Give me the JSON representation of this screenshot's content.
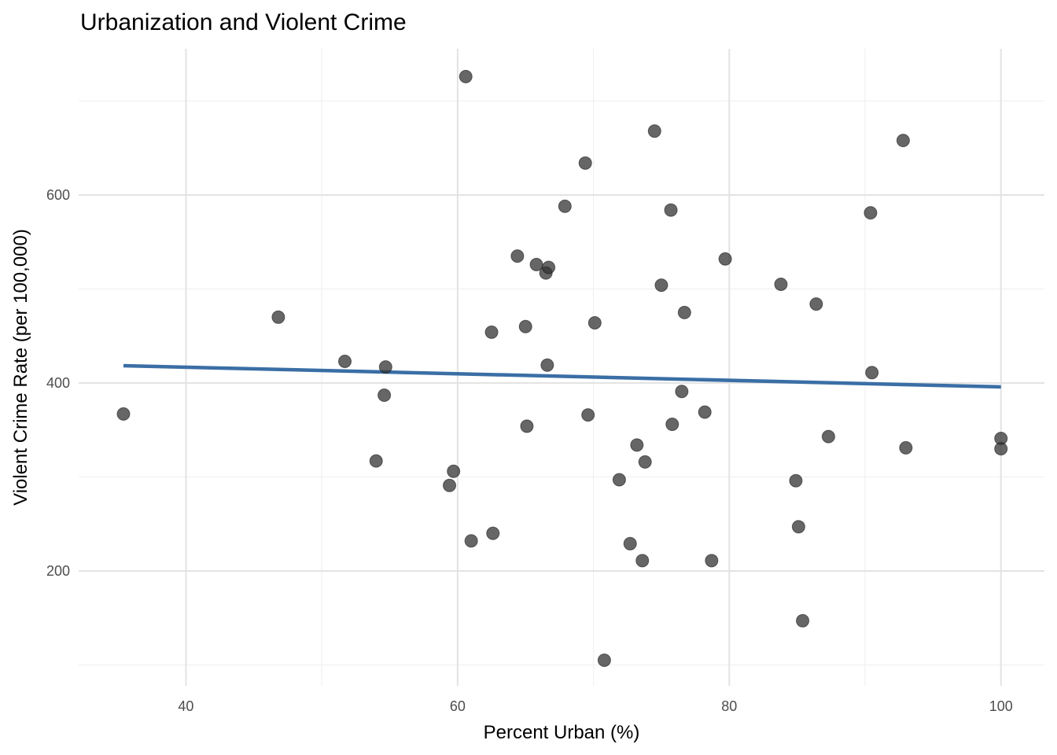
{
  "chart_data": {
    "type": "scatter",
    "title": "Urbanization and Violent Crime",
    "xlabel": "Percent Urban (%)",
    "ylabel": "Violent Crime Rate (per 100,000)",
    "xlim": [
      32.1,
      103.2
    ],
    "ylim": [
      77.8,
      755.6
    ],
    "x_ticks": [
      40,
      60,
      80,
      100
    ],
    "x_tick_labels": [
      "40",
      "60",
      "80",
      "100"
    ],
    "x_minor_ticks": [
      50,
      70,
      90
    ],
    "y_ticks": [
      200,
      400,
      600
    ],
    "y_tick_labels": [
      "200",
      "400",
      "600"
    ],
    "y_minor_ticks": [
      100,
      300,
      500,
      700
    ],
    "grid": true,
    "point_color": "#333333",
    "point_opacity": 0.75,
    "line_color": "#3a6ea5",
    "points": [
      [
        35.4,
        367
      ],
      [
        46.8,
        470
      ],
      [
        51.7,
        423
      ],
      [
        54.7,
        417
      ],
      [
        54.6,
        387
      ],
      [
        54.0,
        317
      ],
      [
        60.6,
        726
      ],
      [
        59.7,
        306
      ],
      [
        59.4,
        291
      ],
      [
        61.0,
        232
      ],
      [
        62.6,
        240
      ],
      [
        62.5,
        454
      ],
      [
        64.4,
        535
      ],
      [
        65.0,
        460
      ],
      [
        65.1,
        354
      ],
      [
        65.8,
        526
      ],
      [
        66.5,
        517
      ],
      [
        66.7,
        523
      ],
      [
        66.6,
        419
      ],
      [
        67.9,
        588
      ],
      [
        69.4,
        634
      ],
      [
        69.6,
        366
      ],
      [
        70.1,
        464
      ],
      [
        70.8,
        105
      ],
      [
        71.9,
        297
      ],
      [
        72.7,
        229
      ],
      [
        73.2,
        334
      ],
      [
        73.6,
        211
      ],
      [
        73.8,
        316
      ],
      [
        74.5,
        668
      ],
      [
        75.0,
        504
      ],
      [
        75.7,
        584
      ],
      [
        75.8,
        356
      ],
      [
        76.5,
        391
      ],
      [
        76.7,
        475
      ],
      [
        78.2,
        369
      ],
      [
        78.7,
        211
      ],
      [
        79.7,
        532
      ],
      [
        83.8,
        505
      ],
      [
        84.9,
        296
      ],
      [
        85.1,
        247
      ],
      [
        85.4,
        147
      ],
      [
        86.4,
        484
      ],
      [
        87.3,
        343
      ],
      [
        90.4,
        581
      ],
      [
        90.5,
        411
      ],
      [
        92.8,
        658
      ],
      [
        93.0,
        331
      ],
      [
        100,
        341
      ],
      [
        100,
        330
      ]
    ],
    "trend_line": {
      "type": "linear",
      "x": [
        35.4,
        100
      ],
      "y": [
        418.4,
        395.8
      ]
    }
  }
}
